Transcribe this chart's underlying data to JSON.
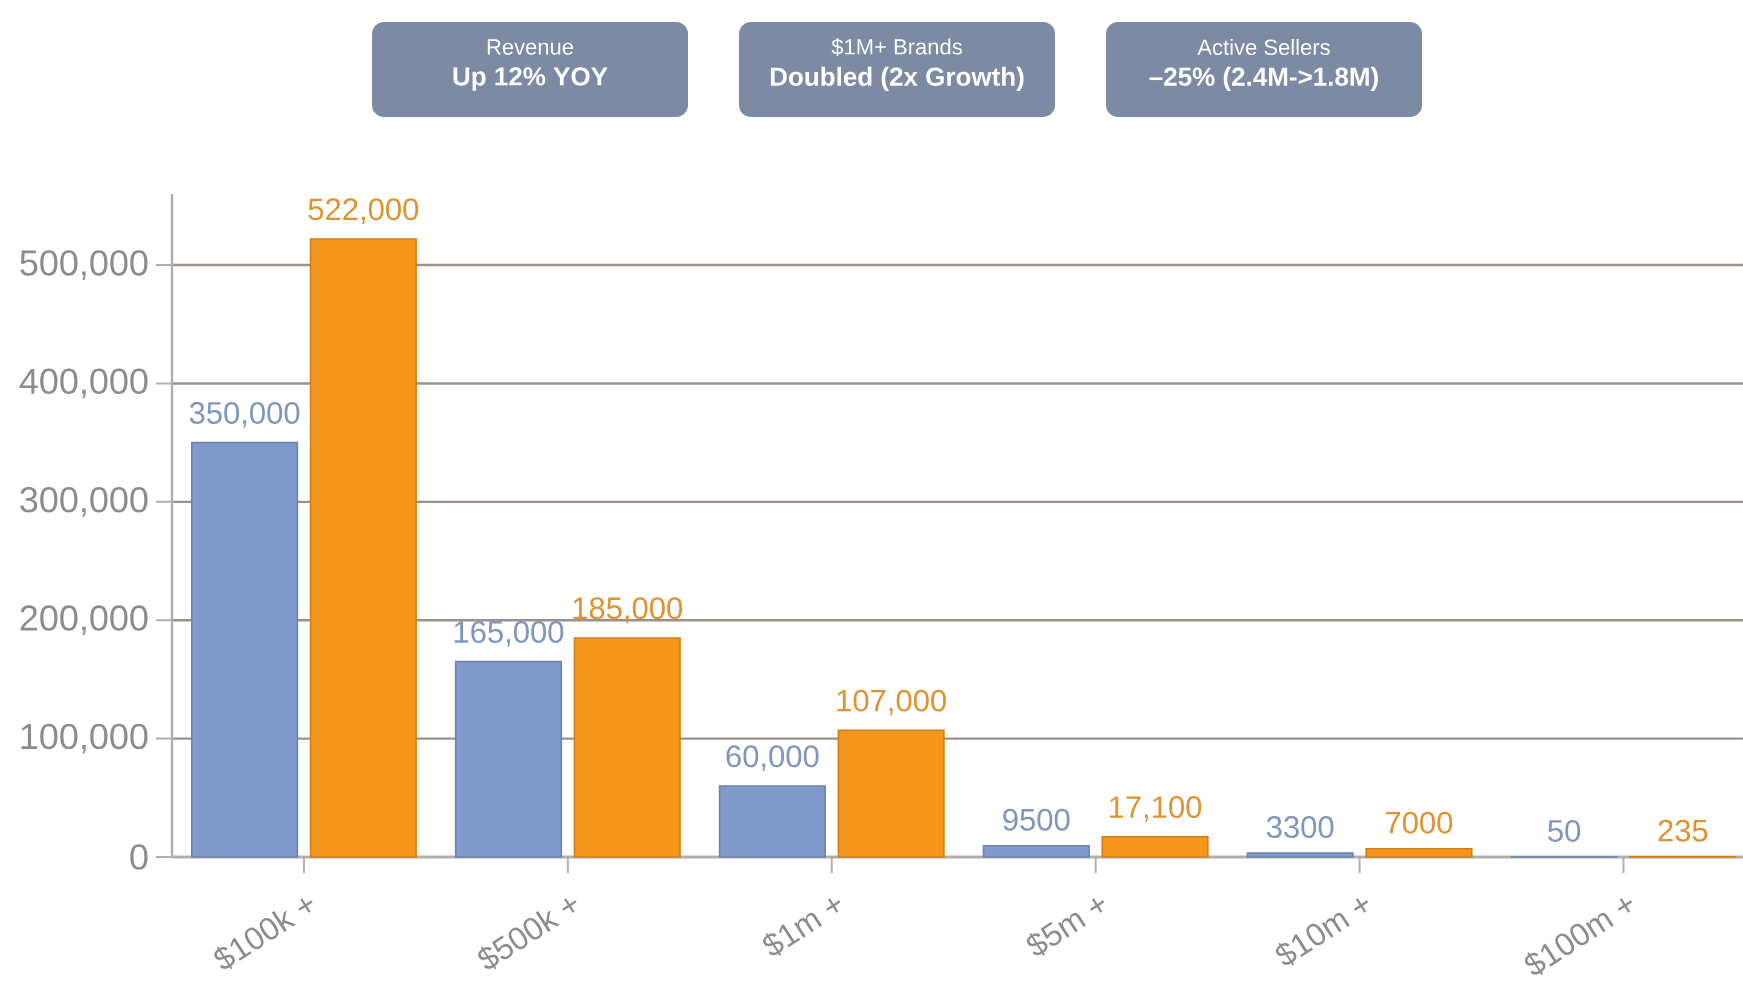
{
  "chart_data": {
    "type": "bar",
    "annotations": [
      "Revenue",
      "Up 12% YOY",
      "$1M+ Brands",
      "Doubled (2x Growth)",
      "Active Sellers",
      "–25% (2.4M->1.8M)"
    ],
    "categories": [
      "$100k +",
      "$500k +",
      "$1m +",
      "$5m +",
      "$10m +",
      "$100m +"
    ],
    "series": [
      {
        "color": "#7f9acb",
        "values": [
          350000,
          165000,
          60000,
          9500,
          3300,
          50
        ],
        "value_labels": [
          "350,000",
          "165,000",
          "60,000",
          "9500",
          "3300",
          "50"
        ]
      },
      {
        "color": "#f5961c",
        "values": [
          522000,
          185000,
          107000,
          17100,
          7000,
          235
        ],
        "value_labels": [
          "522,000",
          "185,000",
          "107,000",
          "17,100",
          "7000",
          "235"
        ]
      }
    ],
    "ylim": [
      0,
      560000
    ],
    "yticks": [
      0,
      {
        "value": 100000,
        "label": "100,000"
      },
      {
        "value": 200000,
        "label": "200,000"
      },
      {
        "value": 300000,
        "label": "300,000"
      },
      {
        "value": 400000,
        "label": "400,000"
      },
      {
        "value": 500000,
        "label": "500,000"
      }
    ],
    "grid": "y"
  }
}
